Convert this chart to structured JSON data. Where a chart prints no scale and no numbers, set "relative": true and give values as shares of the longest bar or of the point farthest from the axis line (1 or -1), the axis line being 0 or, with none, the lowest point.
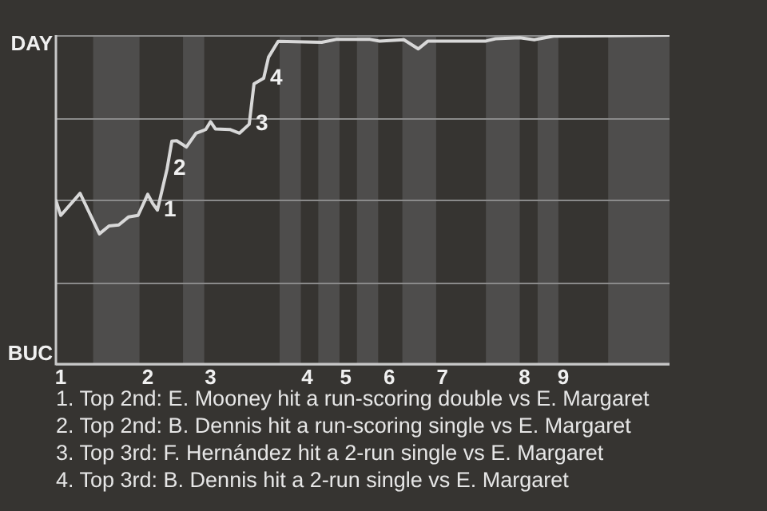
{
  "chart_data": {
    "type": "line",
    "relative": true,
    "categories": [
      null,
      "1",
      null,
      null,
      null,
      null,
      null,
      null,
      null,
      null,
      null,
      null,
      null,
      null,
      null,
      null,
      null,
      null,
      null,
      "2",
      null,
      null,
      null,
      null,
      null,
      null,
      null,
      null,
      null,
      null,
      null,
      null,
      "3",
      null,
      null,
      null,
      null,
      null,
      null,
      null,
      null,
      null,
      null,
      null,
      null,
      null,
      null,
      null,
      null,
      null,
      null,
      null,
      "4",
      null,
      null,
      null,
      null,
      null,
      null,
      null,
      "5",
      null,
      null,
      null,
      null,
      null,
      null,
      null,
      null,
      "6",
      null,
      null,
      null,
      null,
      null,
      null,
      null,
      null,
      null,
      null,
      "7",
      null,
      null,
      null,
      null,
      null,
      null,
      null,
      null,
      null,
      null,
      null,
      null,
      null,
      null,
      null,
      null,
      "8",
      null,
      null,
      null,
      null,
      null,
      null,
      null,
      "9",
      null,
      null,
      null,
      null,
      null,
      null,
      null,
      null,
      null,
      null,
      null,
      null,
      null,
      null,
      null,
      null,
      null,
      null,
      null,
      null,
      null,
      null
    ],
    "series": [
      {
        "color": "#d8d8d8",
        "values": [
          0.497,
          0.452,
          null,
          null,
          null,
          0.519,
          null,
          null,
          null,
          0.396,
          null,
          0.42,
          null,
          0.423,
          null,
          0.447,
          null,
          0.452,
          null,
          0.516,
          0.489,
          0.468,
          null,
          0.593,
          0.678,
          0.679,
          null,
          0.66,
          null,
          0.702,
          null,
          0.713,
          0.737,
          0.715,
          null,
          null,
          0.713,
          null,
          0.702,
          null,
          0.729,
          0.852,
          null,
          0.869,
          0.933,
          null,
          0.981,
          null,
          null,
          null,
          null,
          null,
          null,
          null,
          null,
          0.978,
          null,
          null,
          0.987,
          null,
          null,
          null,
          null,
          null,
          null,
          0.987,
          null,
          0.982,
          null,
          null,
          null,
          null,
          0.986,
          null,
          null,
          0.958,
          null,
          0.982,
          null,
          null,
          null,
          null,
          null,
          null,
          null,
          null,
          null,
          null,
          null,
          0.982,
          null,
          0.989,
          null,
          null,
          null,
          null,
          0.992,
          null,
          null,
          0.986,
          null,
          null,
          null,
          0.997,
          null,
          null,
          null,
          null,
          null,
          null,
          null,
          null,
          null,
          null,
          null,
          null,
          null,
          null,
          null,
          null,
          null,
          null,
          null,
          null,
          null,
          null,
          null,
          1.0
        ]
      }
    ],
    "value_labels": [
      null,
      null,
      null,
      null,
      null,
      null,
      null,
      null,
      null,
      null,
      null,
      null,
      null,
      null,
      null,
      null,
      null,
      null,
      null,
      null,
      null,
      "1",
      null,
      "2",
      null,
      null,
      null,
      null,
      null,
      null,
      null,
      null,
      null,
      null,
      null,
      null,
      null,
      null,
      null,
      null,
      "3",
      null,
      null,
      "4",
      null,
      null,
      null,
      null,
      null,
      null,
      null,
      null,
      null,
      null,
      null,
      null,
      null,
      null,
      null,
      null,
      null,
      null,
      null,
      null,
      null,
      null,
      null,
      null,
      null,
      null,
      null,
      null,
      null,
      null,
      null,
      null,
      null,
      null,
      null,
      null,
      null,
      null,
      null,
      null,
      null,
      null,
      null,
      null,
      null,
      null,
      null,
      null,
      null,
      null,
      null,
      null,
      null,
      null,
      null,
      null,
      null,
      null,
      null,
      null,
      null,
      null,
      null,
      null,
      null,
      null,
      null,
      null,
      null,
      null,
      null,
      null,
      null,
      null,
      null,
      null,
      null,
      null,
      null,
      null,
      null,
      null,
      null,
      null
    ],
    "grid": "y",
    "legend": false,
    "marker": "none",
    "line_style": "solid",
    "annotations": [
      "DAY",
      "BUC",
      "1. Top 2nd: E. Mooney hit a run-scoring double vs E. Margaret",
      "2. Top 2nd: B. Dennis hit a run-scoring single vs E. Margaret",
      "3. Top 3rd: F. Hernández hit a 2-run single vs E. Margaret",
      "4. Top 3rd: B. Dennis hit a 2-run single vs E. Margaret"
    ]
  }
}
